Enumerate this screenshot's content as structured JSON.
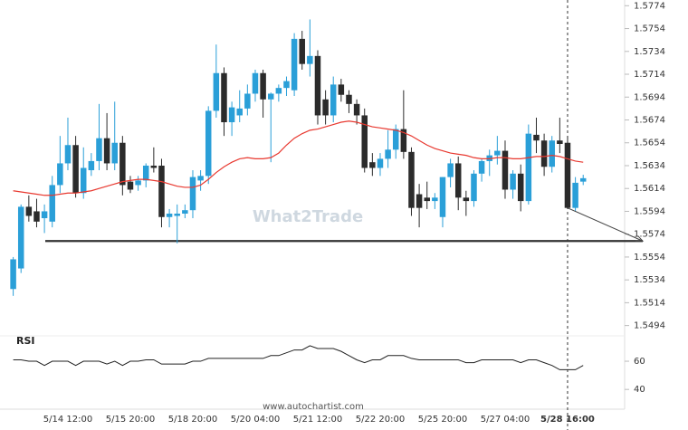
{
  "chart_data": [
    {
      "type": "candlestick",
      "categories": [
        null,
        null,
        null,
        null,
        null,
        null,
        null,
        "5/14 12:00",
        null,
        null,
        null,
        null,
        null,
        null,
        null,
        "5/15 20:00",
        null,
        null,
        null,
        null,
        null,
        null,
        null,
        "5/18 20:00",
        null,
        null,
        null,
        null,
        null,
        null,
        null,
        "5/20 04:00",
        null,
        null,
        null,
        null,
        null,
        null,
        null,
        "5/21 12:00",
        null,
        null,
        null,
        null,
        null,
        null,
        null,
        "5/22 20:00",
        null,
        null,
        null,
        null,
        null,
        null,
        null,
        "5/25 20:00",
        null,
        null,
        null,
        null,
        null,
        null,
        null,
        "5/27 04:00",
        null,
        null,
        null,
        null,
        null,
        null,
        null,
        "5/28 16:00",
        null,
        null
      ],
      "open": [
        1.5526,
        1.5544,
        1.5598,
        1.5594,
        1.5588,
        1.5585,
        1.5617,
        1.5636,
        1.5652,
        1.561,
        1.563,
        1.5638,
        1.5658,
        1.5636,
        1.5654,
        1.562,
        1.5617,
        1.5621,
        1.5634,
        1.5634,
        1.5589,
        1.559,
        1.5592,
        1.5595,
        1.5621,
        1.5625,
        1.5682,
        1.5715,
        1.5672,
        1.5678,
        1.5684,
        1.5697,
        1.5715,
        1.5692,
        1.5697,
        1.5702,
        1.57,
        1.5745,
        1.5723,
        1.573,
        1.5692,
        1.5678,
        1.5705,
        1.5696,
        1.5688,
        1.5678,
        1.5637,
        1.5632,
        1.564,
        1.5648,
        1.5666,
        1.5646,
        1.5609,
        1.5606,
        1.5603,
        1.5589,
        1.5624,
        1.5636,
        1.5606,
        1.5603,
        1.5627,
        1.5638,
        1.5643,
        1.5647,
        1.5613,
        1.5627,
        1.5603,
        1.5661,
        1.5656,
        1.5633,
        1.5656,
        1.5654,
        1.5597,
        1.562
      ],
      "high": [
        1.5554,
        1.56,
        1.5608,
        1.5605,
        1.56,
        1.5625,
        1.566,
        1.5676,
        1.566,
        1.565,
        1.5645,
        1.5688,
        1.568,
        1.569,
        1.566,
        1.5625,
        1.5625,
        1.5636,
        1.565,
        1.564,
        1.5596,
        1.56,
        1.56,
        1.563,
        1.563,
        1.5686,
        1.574,
        1.572,
        1.569,
        1.57,
        1.5705,
        1.5718,
        1.5718,
        1.5698,
        1.5705,
        1.5712,
        1.575,
        1.5752,
        1.5762,
        1.5735,
        1.57,
        1.5712,
        1.571,
        1.57,
        1.5692,
        1.5684,
        1.5645,
        1.5645,
        1.5665,
        1.567,
        1.57,
        1.565,
        1.5618,
        1.562,
        1.561,
        1.5624,
        1.564,
        1.5642,
        1.5612,
        1.563,
        1.564,
        1.5648,
        1.566,
        1.5656,
        1.563,
        1.5635,
        1.567,
        1.5676,
        1.5662,
        1.566,
        1.5676,
        1.566,
        1.5624,
        1.5626
      ],
      "low": [
        1.552,
        1.554,
        1.5585,
        1.558,
        1.5575,
        1.558,
        1.561,
        1.563,
        1.5606,
        1.5605,
        1.5625,
        1.563,
        1.563,
        1.563,
        1.5608,
        1.561,
        1.5612,
        1.5615,
        1.5628,
        1.558,
        1.558,
        1.5566,
        1.5588,
        1.5588,
        1.5612,
        1.5618,
        1.5676,
        1.566,
        1.566,
        1.5672,
        1.5678,
        1.569,
        1.5676,
        1.5637,
        1.569,
        1.5695,
        1.5695,
        1.5718,
        1.5712,
        1.567,
        1.567,
        1.5672,
        1.569,
        1.568,
        1.567,
        1.5628,
        1.5625,
        1.5625,
        1.5632,
        1.564,
        1.564,
        1.559,
        1.558,
        1.5596,
        1.5596,
        1.558,
        1.5615,
        1.5595,
        1.559,
        1.5598,
        1.562,
        1.5625,
        1.5635,
        1.5605,
        1.5605,
        1.5594,
        1.56,
        1.5645,
        1.5625,
        1.5628,
        1.5645,
        1.5596,
        1.5594,
        1.5617
      ],
      "close": [
        1.5552,
        1.5598,
        1.559,
        1.5585,
        1.5594,
        1.5617,
        1.5636,
        1.5652,
        1.561,
        1.5632,
        1.5638,
        1.5658,
        1.5636,
        1.5654,
        1.5617,
        1.5613,
        1.5621,
        1.5634,
        1.5632,
        1.5589,
        1.5592,
        1.5592,
        1.5595,
        1.5624,
        1.5625,
        1.5682,
        1.5715,
        1.5672,
        1.5685,
        1.5684,
        1.5697,
        1.5715,
        1.5692,
        1.5697,
        1.5702,
        1.5708,
        1.5745,
        1.5723,
        1.573,
        1.5678,
        1.5678,
        1.5705,
        1.5696,
        1.5688,
        1.5678,
        1.5632,
        1.5632,
        1.564,
        1.5648,
        1.5666,
        1.5646,
        1.5597,
        1.5597,
        1.5603,
        1.5606,
        1.5624,
        1.5636,
        1.5606,
        1.5603,
        1.5627,
        1.5638,
        1.5643,
        1.5647,
        1.5613,
        1.5627,
        1.5603,
        1.5662,
        1.5656,
        1.5633,
        1.5656,
        1.5653,
        1.5597,
        1.5619,
        1.5623
      ],
      "moving_average": {
        "color": "#e8382f",
        "values": [
          1.5612,
          1.5611,
          1.561,
          1.5609,
          1.5608,
          1.5608,
          1.5609,
          1.561,
          1.561,
          1.5611,
          1.5612,
          1.5614,
          1.5616,
          1.5618,
          1.562,
          1.5621,
          1.5622,
          1.5622,
          1.5621,
          1.562,
          1.5618,
          1.5616,
          1.5615,
          1.5615,
          1.5617,
          1.5622,
          1.5628,
          1.5633,
          1.5637,
          1.564,
          1.5641,
          1.564,
          1.564,
          1.5641,
          1.5645,
          1.5652,
          1.5658,
          1.5662,
          1.5665,
          1.5666,
          1.5668,
          1.567,
          1.5672,
          1.5673,
          1.5672,
          1.567,
          1.5668,
          1.5667,
          1.5666,
          1.5665,
          1.5663,
          1.566,
          1.5656,
          1.5652,
          1.5649,
          1.5647,
          1.5645,
          1.5644,
          1.5643,
          1.5641,
          1.564,
          1.564,
          1.5641,
          1.5641,
          1.564,
          1.564,
          1.5641,
          1.5642,
          1.5642,
          1.5643,
          1.5642,
          1.564,
          1.5638,
          1.5637
        ]
      },
      "support_level": 1.5568,
      "up_color": "#2a9fd8",
      "down_color": "#2b2b2b",
      "ylim": [
        1.5485,
        1.5779
      ],
      "yticks": [
        1.5774,
        1.5754,
        1.5734,
        1.5714,
        1.5694,
        1.5674,
        1.5654,
        1.5634,
        1.5614,
        1.5594,
        1.5574,
        1.5554,
        1.5534,
        1.5514,
        1.5494
      ],
      "watermark": "What2Trade",
      "source": "www.autochartist.com"
    },
    {
      "type": "line",
      "title": "RSI",
      "color": "#222222",
      "values": [
        61,
        61,
        60,
        60,
        57,
        60,
        60,
        60,
        57,
        60,
        60,
        60,
        58,
        60,
        57,
        60,
        60,
        61,
        61,
        58,
        58,
        58,
        58,
        60,
        60,
        62,
        62,
        62,
        62,
        62,
        62,
        62,
        62,
        64,
        64,
        66,
        68,
        68,
        71,
        69,
        69,
        69,
        67,
        64,
        61,
        59,
        61,
        61,
        64,
        64,
        64,
        62,
        61,
        61,
        61,
        61,
        61,
        61,
        59,
        59,
        61,
        61,
        61,
        61,
        61,
        59,
        61,
        61,
        59,
        57,
        54,
        54,
        54,
        57
      ],
      "ylim": [
        26,
        78
      ],
      "yticks": [
        60,
        40
      ]
    }
  ]
}
